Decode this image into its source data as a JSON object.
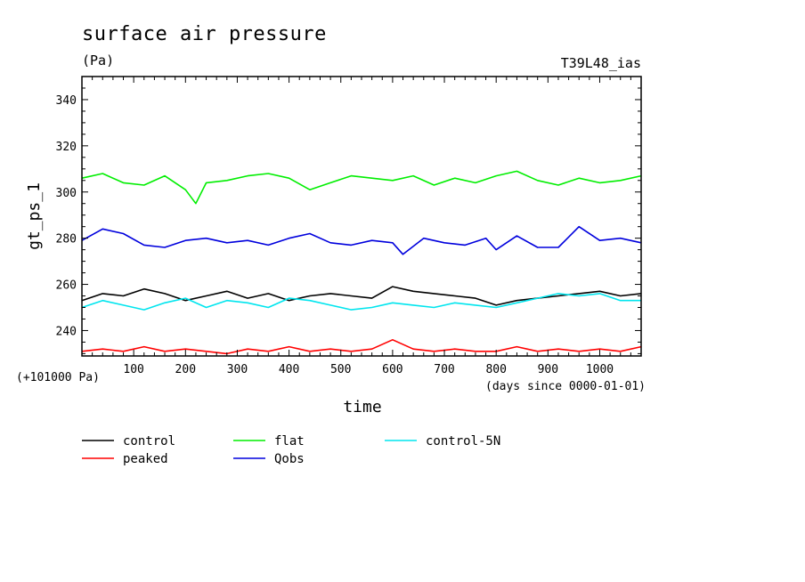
{
  "chart_data": {
    "type": "line",
    "title": "surface air pressure",
    "units": "(Pa)",
    "run_label": "T39L48_ias",
    "xlabel": "time",
    "ylabel": "gt_ps_1",
    "y_offset_label": "(+101000 Pa)",
    "x_unit_label": "(days since 0000-01-01)",
    "xlim": [
      0,
      1080
    ],
    "ylim": [
      229,
      350
    ],
    "x_ticks": [
      100,
      200,
      300,
      400,
      500,
      600,
      700,
      800,
      900,
      1000
    ],
    "y_ticks": [
      240,
      260,
      280,
      300,
      320,
      340
    ],
    "x_ticks_labels": [
      "100",
      "200",
      "300",
      "400",
      "500",
      "600",
      "700",
      "800",
      "900",
      "1000"
    ],
    "y_ticks_labels": [
      "240",
      "260",
      "280",
      "300",
      "320",
      "340"
    ],
    "grid": false,
    "legend_position": "bottom-left",
    "series": [
      {
        "name": "control",
        "color": "#000000",
        "x": [
          0,
          40,
          80,
          120,
          160,
          200,
          240,
          280,
          320,
          360,
          400,
          440,
          480,
          520,
          560,
          600,
          640,
          680,
          720,
          760,
          800,
          840,
          880,
          920,
          960,
          1000,
          1040,
          1080
        ],
        "values": [
          253,
          256,
          255,
          258,
          256,
          253,
          255,
          257,
          254,
          256,
          253,
          255,
          256,
          255,
          254,
          259,
          257,
          256,
          255,
          254,
          251,
          253,
          254,
          255,
          256,
          257,
          255,
          256
        ]
      },
      {
        "name": "peaked",
        "color": "#ff0000",
        "x": [
          0,
          40,
          80,
          120,
          160,
          200,
          240,
          280,
          320,
          360,
          400,
          440,
          480,
          520,
          560,
          600,
          640,
          680,
          720,
          760,
          800,
          840,
          880,
          920,
          960,
          1000,
          1040,
          1080
        ],
        "values": [
          231,
          232,
          231,
          233,
          231,
          232,
          231,
          230,
          232,
          231,
          233,
          231,
          232,
          231,
          232,
          236,
          232,
          231,
          232,
          231,
          231,
          233,
          231,
          232,
          231,
          232,
          231,
          233
        ]
      },
      {
        "name": "flat",
        "color": "#00ee00",
        "x": [
          0,
          40,
          80,
          120,
          160,
          200,
          220,
          240,
          280,
          320,
          360,
          400,
          440,
          480,
          520,
          560,
          600,
          640,
          680,
          720,
          760,
          800,
          840,
          880,
          920,
          960,
          1000,
          1040,
          1080
        ],
        "values": [
          306,
          308,
          304,
          303,
          307,
          301,
          295,
          304,
          305,
          307,
          308,
          306,
          301,
          304,
          307,
          306,
          305,
          307,
          303,
          306,
          304,
          307,
          309,
          305,
          303,
          306,
          304,
          305,
          307
        ]
      },
      {
        "name": "Qobs",
        "color": "#0000dd",
        "x": [
          0,
          40,
          80,
          120,
          160,
          200,
          240,
          280,
          320,
          360,
          400,
          440,
          480,
          520,
          560,
          600,
          620,
          660,
          700,
          740,
          780,
          800,
          840,
          880,
          920,
          960,
          1000,
          1040,
          1080
        ],
        "values": [
          279,
          284,
          282,
          277,
          276,
          279,
          280,
          278,
          279,
          277,
          280,
          282,
          278,
          277,
          279,
          278,
          273,
          280,
          278,
          277,
          280,
          275,
          281,
          276,
          276,
          285,
          279,
          280,
          278
        ]
      },
      {
        "name": "control-5N",
        "color": "#00e5ee",
        "x": [
          0,
          40,
          80,
          120,
          160,
          200,
          240,
          280,
          320,
          360,
          400,
          440,
          480,
          520,
          560,
          600,
          640,
          680,
          720,
          760,
          800,
          840,
          880,
          920,
          960,
          1000,
          1040,
          1080
        ],
        "values": [
          250,
          253,
          251,
          249,
          252,
          254,
          250,
          253,
          252,
          250,
          254,
          253,
          251,
          249,
          250,
          252,
          251,
          250,
          252,
          251,
          250,
          252,
          254,
          256,
          255,
          256,
          253,
          253
        ]
      }
    ]
  }
}
